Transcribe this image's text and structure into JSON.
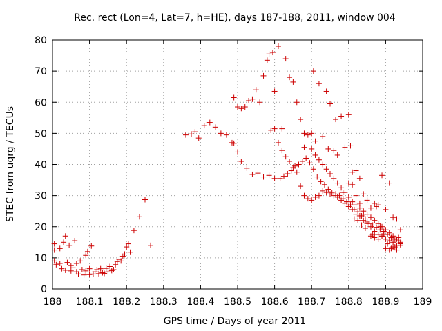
{
  "chart_data": {
    "type": "scatter",
    "title": "Rec. rect (Lon=4, Lat=7, h=HE), days 187-188, 2011, window 004",
    "xlabel": "GPS time / Days of year 2011",
    "ylabel": "STEC from uqrg / TECUs",
    "xlim": [
      188,
      189
    ],
    "ylim": [
      0,
      80
    ],
    "xticks": [
      188,
      188.1,
      188.2,
      188.3,
      188.4,
      188.5,
      188.6,
      188.7,
      188.8,
      188.9,
      189
    ],
    "xtick_labels": [
      "188",
      "188.1",
      "188.2",
      "188.3",
      "188.4",
      "188.5",
      "188.6",
      "188.7",
      "188.8",
      "188.9",
      "189"
    ],
    "yticks": [
      0,
      10,
      20,
      30,
      40,
      50,
      60,
      70,
      80
    ],
    "ytick_labels": [
      "0",
      "10",
      "20",
      "30",
      "40",
      "50",
      "60",
      "70",
      "80"
    ],
    "grid": true,
    "marker": "plus",
    "color": "#cc0000",
    "series": [
      {
        "x": [
          188.005,
          188.005,
          188.005,
          188.01,
          188.02,
          188.02,
          188.025,
          188.03,
          188.035,
          188.035,
          188.04,
          188.045,
          188.05,
          188.05,
          188.055,
          188.06,
          188.065,
          188.065,
          188.07,
          188.075,
          188.08,
          188.085,
          188.09,
          188.09,
          188.095,
          188.1,
          188.1,
          188.105,
          188.11,
          188.115,
          188.12,
          188.125,
          188.13,
          188.135,
          188.14,
          188.145,
          188.15,
          188.155,
          188.16,
          188.165,
          188.17,
          188.175,
          188.18,
          188.185,
          188.19,
          188.195,
          188.2,
          188.205,
          188.21,
          188.22,
          188.235,
          188.25,
          188.265
        ],
        "y": [
          14.5,
          12.5,
          9.0,
          7.8,
          13.0,
          8.2,
          6.5,
          15.0,
          17.0,
          6.0,
          8.5,
          14.0,
          7.5,
          5.8,
          6.8,
          15.5,
          5.5,
          8.2,
          4.8,
          9.0,
          6.2,
          4.5,
          10.8,
          5.8,
          12.0,
          4.6,
          6.5,
          13.8,
          4.8,
          5.5,
          6.2,
          4.9,
          6.5,
          5.2,
          5.0,
          6.6,
          5.5,
          7.2,
          5.9,
          6.2,
          7.8,
          8.8,
          9.5,
          9.0,
          10.5,
          11.2,
          13.5,
          14.5,
          11.8,
          18.8,
          23.2,
          28.7,
          14.0
        ],
        "name": ""
      },
      {
        "x": [
          188.36,
          188.375,
          188.385,
          188.395,
          188.41,
          188.425,
          188.44,
          188.455,
          188.47,
          188.485,
          188.49,
          188.5,
          188.51,
          188.52,
          188.53,
          188.54,
          188.55,
          188.56,
          188.57,
          188.58,
          188.585,
          188.59,
          188.595,
          188.6,
          188.61,
          188.62,
          188.63,
          188.64,
          188.65,
          188.66,
          188.67,
          188.68
        ],
        "y": [
          49.5,
          49.8,
          50.5,
          48.5,
          52.5,
          53.5,
          52.0,
          50.0,
          49.5,
          47.0,
          61.5,
          58.5,
          58.0,
          58.5,
          60.5,
          61.0,
          64.0,
          60.0,
          68.5,
          73.5,
          75.5,
          51.0,
          76.0,
          63.5,
          78.0,
          51.5,
          74.0,
          68.0,
          66.5,
          60.0,
          54.5,
          50.0
        ],
        "name": ""
      },
      {
        "x": [
          188.49,
          188.5,
          188.51,
          188.525,
          188.54,
          188.555,
          188.57,
          188.585,
          188.6,
          188.615,
          188.625,
          188.635,
          188.645,
          188.655,
          188.665,
          188.675,
          188.685,
          188.695,
          188.705,
          188.715,
          188.725,
          188.735,
          188.745,
          188.755,
          188.765,
          188.775,
          188.785,
          188.795,
          188.805,
          188.815,
          188.825,
          188.835,
          188.845,
          188.855,
          188.865,
          188.875,
          188.885,
          188.895,
          188.905,
          188.915,
          188.925,
          188.935,
          188.94
        ],
        "y": [
          46.8,
          44.0,
          41.0,
          38.8,
          36.8,
          37.2,
          36.0,
          36.5,
          35.5,
          35.5,
          36.2,
          37.0,
          38.0,
          39.5,
          40.0,
          41.0,
          42.0,
          40.5,
          38.5,
          36.0,
          34.5,
          33.5,
          32.0,
          31.0,
          30.5,
          30.0,
          29.0,
          28.0,
          27.0,
          25.5,
          24.8,
          23.5,
          22.5,
          21.0,
          20.5,
          19.8,
          19.0,
          18.5,
          17.5,
          16.5,
          16.0,
          15.5,
          14.5
        ],
        "name": ""
      },
      {
        "x": [
          188.6,
          188.61,
          188.62,
          188.63,
          188.64,
          188.65,
          188.66,
          188.67,
          188.68,
          188.69,
          188.7,
          188.71,
          188.72,
          188.73,
          188.74,
          188.75,
          188.76,
          188.77,
          188.78,
          188.79,
          188.8,
          188.81,
          188.82,
          188.83,
          188.84,
          188.85,
          188.86,
          188.87,
          188.88,
          188.89,
          188.9,
          188.91,
          188.92,
          188.93,
          188.94
        ],
        "y": [
          51.5,
          47.0,
          44.5,
          42.5,
          41.0,
          39.0,
          37.5,
          33.0,
          30.0,
          29.0,
          28.5,
          29.5,
          30.0,
          31.5,
          31.0,
          30.5,
          30.0,
          29.5,
          28.5,
          27.5,
          26.5,
          25.5,
          24.0,
          23.5,
          22.0,
          21.0,
          20.0,
          18.5,
          17.5,
          17.0,
          16.0,
          15.5,
          15.0,
          14.0,
          14.5
        ],
        "name": ""
      },
      {
        "x": [
          188.68,
          188.69,
          188.7,
          188.705,
          188.71,
          188.72,
          188.73,
          188.74,
          188.745,
          188.75,
          188.76,
          188.765,
          188.77,
          188.78,
          188.79,
          188.8,
          188.805,
          188.81,
          188.82,
          188.83,
          188.84,
          188.85,
          188.86,
          188.87,
          188.88,
          188.89,
          188.9,
          188.91,
          188.92,
          188.93,
          188.94
        ],
        "y": [
          45.5,
          49.5,
          50.0,
          70.0,
          47.5,
          66.0,
          49.0,
          63.5,
          45.0,
          59.5,
          44.5,
          54.5,
          43.0,
          55.5,
          45.5,
          56.0,
          46.0,
          37.5,
          38.0,
          35.5,
          30.5,
          28.5,
          26.0,
          27.5,
          27.0,
          36.5,
          25.5,
          34.0,
          23.0,
          22.5,
          19.0
        ],
        "name": ""
      },
      {
        "x": [
          188.7,
          188.71,
          188.72,
          188.73,
          188.74,
          188.75,
          188.76,
          188.77,
          188.78,
          188.79,
          188.8,
          188.81,
          188.82,
          188.83,
          188.84,
          188.85,
          188.86,
          188.87,
          188.88,
          188.89,
          188.9,
          188.91,
          188.92,
          188.93,
          188.94
        ],
        "y": [
          45.0,
          43.0,
          41.5,
          40.0,
          38.5,
          37.0,
          35.5,
          34.0,
          32.5,
          31.0,
          29.5,
          28.0,
          27.0,
          26.0,
          25.0,
          24.0,
          23.0,
          22.0,
          21.0,
          20.0,
          19.0,
          18.0,
          17.0,
          16.0,
          15.0
        ],
        "name": ""
      },
      {
        "x": [
          188.8,
          188.81,
          188.82,
          188.83,
          188.84,
          188.85,
          188.86,
          188.87,
          188.88,
          188.89,
          188.9,
          188.91,
          188.92,
          188.93,
          188.94,
          188.785,
          188.795,
          188.815,
          188.825,
          188.835,
          188.845,
          188.865,
          188.875,
          188.885,
          188.895,
          188.905,
          188.915,
          188.925,
          188.935
        ],
        "y": [
          34.0,
          33.5,
          30.0,
          27.5,
          24.0,
          21.5,
          17.0,
          16.5,
          16.0,
          17.0,
          13.0,
          12.5,
          13.5,
          12.5,
          14.0,
          31.0,
          28.0,
          22.5,
          22.0,
          20.5,
          19.5,
          17.5,
          26.5,
          20.0,
          17.5,
          14.5,
          13.0,
          13.5,
          16.5
        ],
        "name": ""
      }
    ]
  }
}
